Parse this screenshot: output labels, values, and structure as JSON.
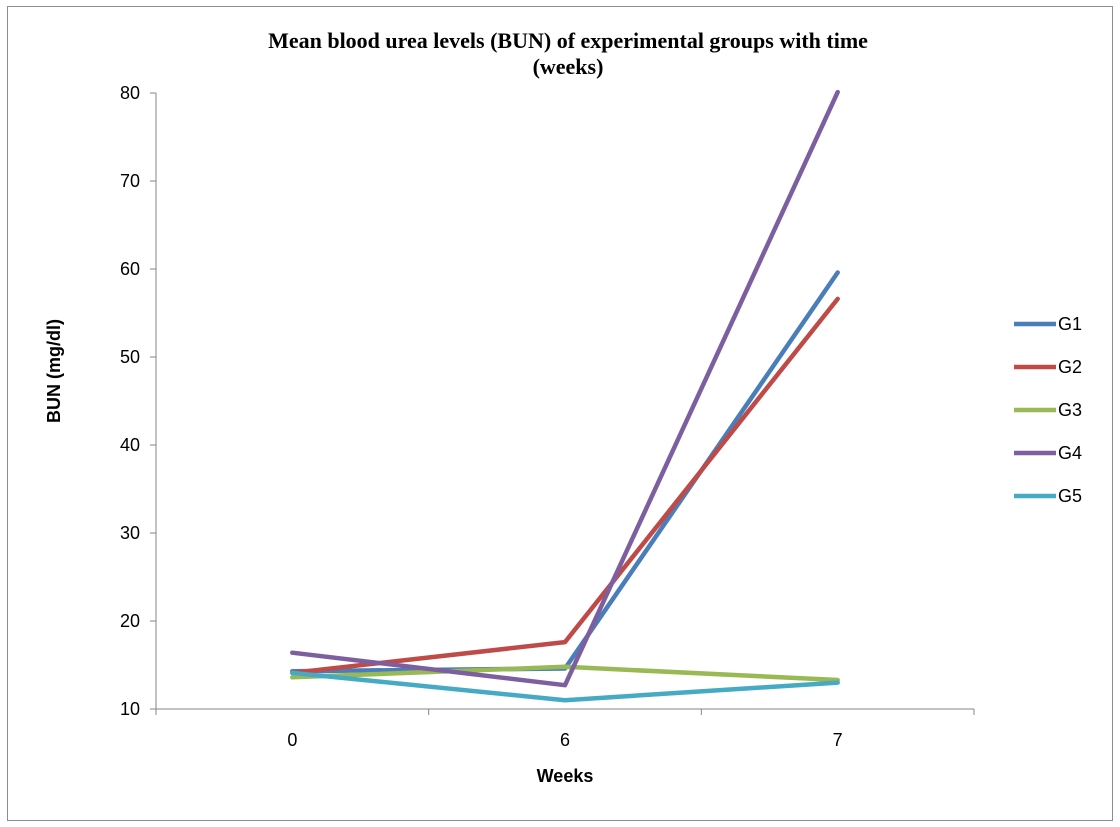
{
  "chart_data": {
    "type": "line",
    "title_line1": "Mean blood urea levels (BUN) of experimental groups with time",
    "title_line2": "(weeks)",
    "xlabel": "Weeks",
    "ylabel": "BUN (mg/dl)",
    "categories": [
      "0",
      "6",
      "7"
    ],
    "ylim": [
      10,
      80
    ],
    "yticks": [
      10,
      20,
      30,
      40,
      50,
      60,
      70,
      80
    ],
    "grid": false,
    "legend": "right",
    "series": [
      {
        "name": "G1",
        "color": "#4a7ebb",
        "values": [
          14.3,
          14.6,
          59.6
        ]
      },
      {
        "name": "G2",
        "color": "#be4b48",
        "values": [
          14.1,
          17.6,
          56.6
        ]
      },
      {
        "name": "G3",
        "color": "#98b954",
        "values": [
          13.6,
          14.8,
          13.3
        ]
      },
      {
        "name": "G4",
        "color": "#7d5fa0",
        "values": [
          16.4,
          12.7,
          80.1
        ]
      },
      {
        "name": "G5",
        "color": "#46aac5",
        "values": [
          14.1,
          11.0,
          13.0
        ]
      }
    ]
  }
}
